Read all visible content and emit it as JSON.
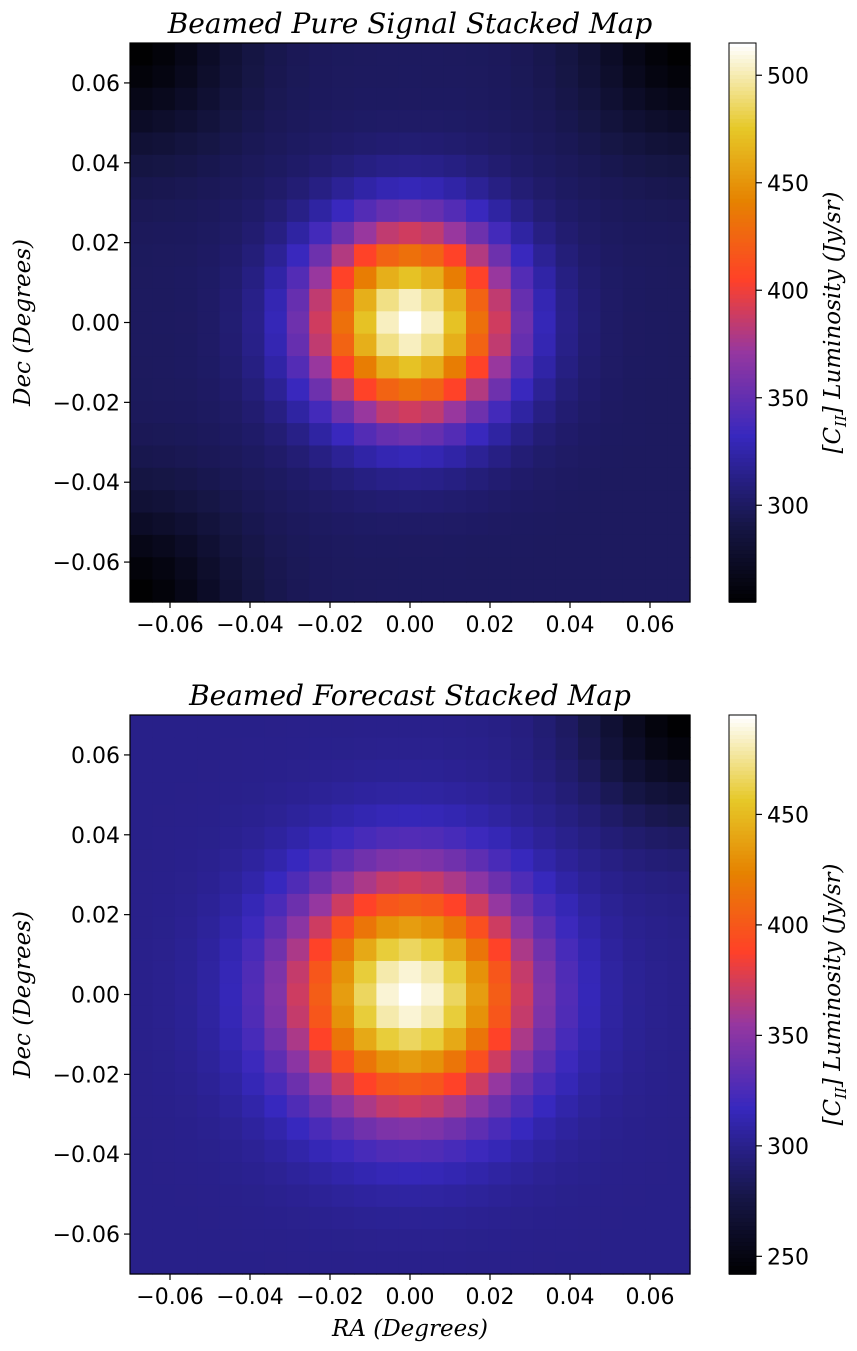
{
  "chart_data": [
    {
      "type": "heatmap",
      "title": "Beamed Pure Signal Stacked Map",
      "xlabel": "",
      "ylabel": "Dec (Degrees)",
      "colorbar_label": "[C_II] Luminosity (Jy/sr)",
      "colorbar_label_parts": {
        "open": "[C",
        "sub": "II",
        "rest": "] Luminosity (Jy/sr)"
      },
      "colormap": "gnuplot2-like",
      "grid_size": 25,
      "xlim": [
        -0.07,
        0.07
      ],
      "ylim": [
        -0.07,
        0.07
      ],
      "xticks": [
        -0.06,
        -0.04,
        -0.02,
        0.0,
        0.02,
        0.04,
        0.06
      ],
      "xtick_labels": [
        "−0.06",
        "−0.04",
        "−0.02",
        "0.00",
        "0.02",
        "0.04",
        "0.06"
      ],
      "yticks": [
        -0.06,
        -0.04,
        -0.02,
        0.0,
        0.02,
        0.04,
        0.06
      ],
      "ytick_labels": [
        "−0.06",
        "−0.04",
        "−0.02",
        "0.00",
        "0.02",
        "0.04",
        "0.06"
      ],
      "clim": [
        255,
        515
      ],
      "cticks": [
        300,
        350,
        400,
        450,
        500
      ],
      "peak": {
        "ra": 0.0,
        "dec": 0.0,
        "value": 515
      },
      "background_level": 300,
      "core_sigma_deg": 0.017,
      "corners_dark": [
        "top-right",
        "bottom-left",
        "top-left"
      ]
    },
    {
      "type": "heatmap",
      "title": "Beamed Forecast Stacked Map",
      "xlabel": "RA (Degrees)",
      "ylabel": "Dec (Degrees)",
      "colorbar_label": "[C_II] Luminosity (Jy/sr)",
      "colorbar_label_parts": {
        "open": "[C",
        "sub": "II",
        "rest": "] Luminosity (Jy/sr)"
      },
      "colormap": "gnuplot2-like",
      "grid_size": 25,
      "xlim": [
        -0.07,
        0.07
      ],
      "ylim": [
        -0.07,
        0.07
      ],
      "xticks": [
        -0.06,
        -0.04,
        -0.02,
        0.0,
        0.02,
        0.04,
        0.06
      ],
      "xtick_labels": [
        "−0.06",
        "−0.04",
        "−0.02",
        "0.00",
        "0.02",
        "0.04",
        "0.06"
      ],
      "yticks": [
        -0.06,
        -0.04,
        -0.02,
        0.0,
        0.02,
        0.04,
        0.06
      ],
      "ytick_labels": [
        "−0.06",
        "−0.04",
        "−0.02",
        "0.00",
        "0.02",
        "0.04",
        "0.06"
      ],
      "clim": [
        242,
        495
      ],
      "cticks": [
        250,
        300,
        350,
        400,
        450
      ],
      "peak": {
        "ra": 0.0,
        "dec": 0.0,
        "value": 495
      },
      "background_level": 300,
      "core_sigma_deg": 0.02,
      "corners_dark": [
        "top-right"
      ]
    }
  ]
}
